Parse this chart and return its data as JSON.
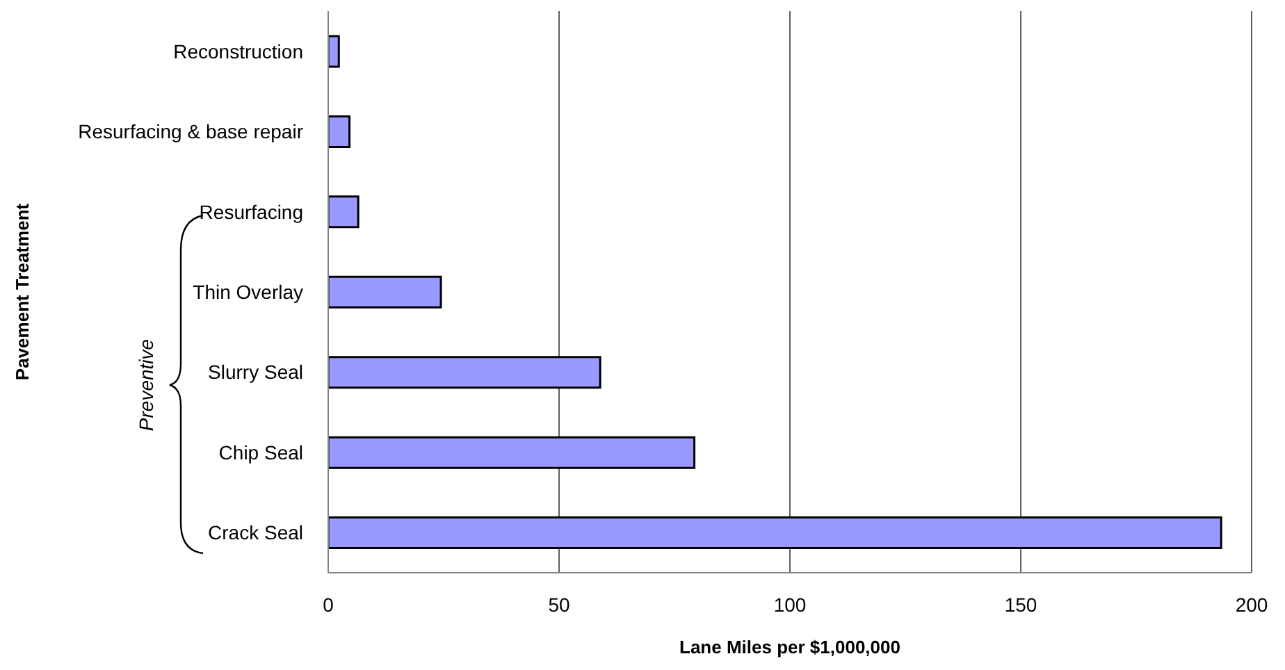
{
  "chart_data": {
    "type": "bar",
    "orientation": "horizontal",
    "xlabel": "Lane Miles per $1,000,000",
    "ylabel": "Pavement Treatment",
    "categories": [
      "Reconstruction",
      "Resurfacing & base repair",
      "Resurfacing",
      "Thin Overlay",
      "Slurry Seal",
      "Chip Seal",
      "Crack Seal"
    ],
    "values": [
      2.3,
      4.6,
      6.5,
      24.4,
      58.9,
      79.3,
      193.4
    ],
    "color": "#9999ff",
    "xlim": [
      0,
      200
    ],
    "xticks": [
      0,
      50,
      100,
      150,
      200
    ],
    "grid": "x",
    "legend": false,
    "annotations": [
      "Preventive"
    ]
  }
}
